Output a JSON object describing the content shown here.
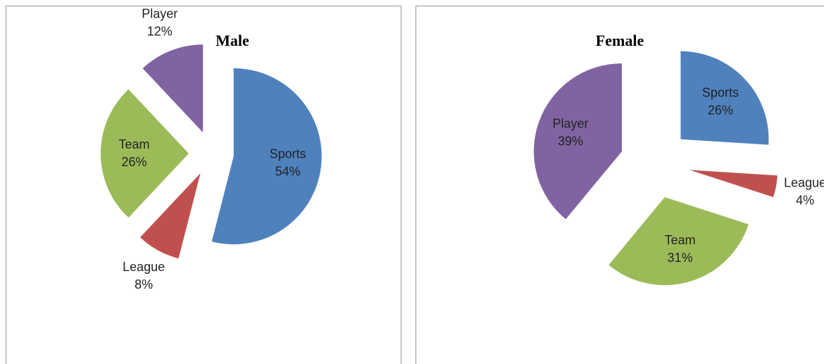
{
  "chart_data": [
    {
      "type": "pie",
      "title": "Male",
      "categories": [
        "Sports",
        "League",
        "Team",
        "Player"
      ],
      "values": [
        54,
        8,
        26,
        12
      ],
      "value_labels": [
        "54%",
        "8%",
        "26%",
        "12%"
      ],
      "colors": [
        "#4f81bd",
        "#c0504d",
        "#9bbb59",
        "#8064a2"
      ]
    },
    {
      "type": "pie",
      "title": "Female",
      "categories": [
        "Sports",
        "League",
        "Team",
        "Player"
      ],
      "values": [
        26,
        4,
        31,
        39
      ],
      "value_labels": [
        "26%",
        "4%",
        "31%",
        "39%"
      ],
      "colors": [
        "#4f81bd",
        "#c0504d",
        "#9bbb59",
        "#8064a2"
      ]
    }
  ]
}
